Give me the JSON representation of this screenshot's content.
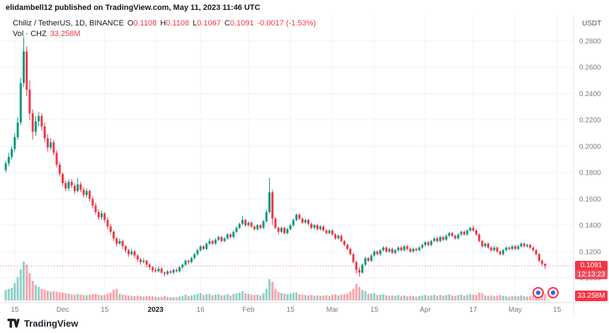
{
  "publish_bar": {
    "text": "elidambell12 published on TradingView.com, May 11, 2023 11:46 UTC"
  },
  "legend": {
    "symbol": "Chiliz / TetherUS, 1D, BINANCE",
    "o_label": "O",
    "o_value": "0.1108",
    "h_label": "H",
    "h_value": "0.1108",
    "l_label": "L",
    "l_value": "0.1067",
    "c_label": "C",
    "c_value": "0.1091",
    "change": "-0.0017 (-1.53%)",
    "vol_label": "Vol · CHZ",
    "vol_value": "33.258M"
  },
  "axis": {
    "currency": "USDT"
  },
  "footer": {
    "logo_text": "TradingView"
  },
  "colors": {
    "up": "#089981",
    "down": "#f23645",
    "vol_up": "rgba(8,153,129,0.45)",
    "vol_down": "rgba(242,54,69,0.45)",
    "grid": "#f0f3fa",
    "axis_text": "#787b86",
    "text": "#131722",
    "badge": "#f23645",
    "separator": "#e0e3eb"
  },
  "chart_data": {
    "type": "candlestick",
    "title": "Chiliz / TetherUS, 1D, BINANCE",
    "quote_currency": "USDT",
    "last_price": 0.1091,
    "countdown": "12:13:23",
    "last_volume": "33.258M",
    "price_axis": {
      "min": 0.1,
      "max": 0.28,
      "ticks": [
        0.28,
        0.26,
        0.24,
        0.22,
        0.2,
        0.18,
        0.16,
        0.14,
        0.12,
        0.1
      ]
    },
    "time_ticks": [
      {
        "label": "15",
        "slot": 3,
        "bold": false
      },
      {
        "label": "Dec",
        "slot": 19,
        "bold": false
      },
      {
        "label": "15",
        "slot": 33,
        "bold": false
      },
      {
        "label": "2023",
        "slot": 50,
        "bold": true
      },
      {
        "label": "16",
        "slot": 65,
        "bold": false
      },
      {
        "label": "Feb",
        "slot": 81,
        "bold": false
      },
      {
        "label": "15",
        "slot": 95,
        "bold": false
      },
      {
        "label": "Mar",
        "slot": 109,
        "bold": false
      },
      {
        "label": "15",
        "slot": 123,
        "bold": false
      },
      {
        "label": "Apr",
        "slot": 140,
        "bold": false
      },
      {
        "label": "17",
        "slot": 156,
        "bold": false
      },
      {
        "label": "May",
        "slot": 170,
        "bold": false
      },
      {
        "label": "15",
        "slot": 184,
        "bold": false
      }
    ],
    "slots": 190,
    "volume_scale_max": 200,
    "candles_format": [
      "open",
      "high",
      "low",
      "close",
      "volume_millions"
    ],
    "candles": [
      [
        0.182,
        0.189,
        0.18,
        0.187,
        55
      ],
      [
        0.187,
        0.195,
        0.185,
        0.192,
        60
      ],
      [
        0.192,
        0.2,
        0.19,
        0.198,
        65
      ],
      [
        0.198,
        0.21,
        0.196,
        0.207,
        90
      ],
      [
        0.207,
        0.222,
        0.205,
        0.218,
        120
      ],
      [
        0.218,
        0.252,
        0.216,
        0.248,
        160
      ],
      [
        0.248,
        0.283,
        0.245,
        0.272,
        200
      ],
      [
        0.272,
        0.276,
        0.238,
        0.243,
        185
      ],
      [
        0.243,
        0.25,
        0.22,
        0.225,
        140
      ],
      [
        0.225,
        0.228,
        0.205,
        0.211,
        100
      ],
      [
        0.211,
        0.223,
        0.208,
        0.219,
        80
      ],
      [
        0.219,
        0.226,
        0.215,
        0.223,
        70
      ],
      [
        0.223,
        0.225,
        0.212,
        0.215,
        60
      ],
      [
        0.215,
        0.218,
        0.203,
        0.206,
        55
      ],
      [
        0.206,
        0.209,
        0.196,
        0.199,
        50
      ],
      [
        0.199,
        0.206,
        0.197,
        0.203,
        45
      ],
      [
        0.203,
        0.205,
        0.193,
        0.195,
        48
      ],
      [
        0.195,
        0.197,
        0.184,
        0.186,
        45
      ],
      [
        0.186,
        0.188,
        0.177,
        0.179,
        42
      ],
      [
        0.179,
        0.18,
        0.17,
        0.172,
        40
      ],
      [
        0.172,
        0.174,
        0.166,
        0.168,
        38
      ],
      [
        0.168,
        0.175,
        0.166,
        0.173,
        35
      ],
      [
        0.173,
        0.175,
        0.168,
        0.17,
        32
      ],
      [
        0.17,
        0.172,
        0.164,
        0.166,
        30
      ],
      [
        0.166,
        0.176,
        0.165,
        0.171,
        34
      ],
      [
        0.171,
        0.173,
        0.165,
        0.167,
        30
      ],
      [
        0.167,
        0.169,
        0.161,
        0.163,
        28
      ],
      [
        0.163,
        0.168,
        0.161,
        0.166,
        27
      ],
      [
        0.166,
        0.167,
        0.158,
        0.16,
        30
      ],
      [
        0.16,
        0.162,
        0.153,
        0.155,
        32
      ],
      [
        0.155,
        0.157,
        0.148,
        0.15,
        34
      ],
      [
        0.15,
        0.152,
        0.144,
        0.146,
        30
      ],
      [
        0.146,
        0.151,
        0.144,
        0.149,
        26
      ],
      [
        0.149,
        0.15,
        0.142,
        0.144,
        28
      ],
      [
        0.144,
        0.146,
        0.137,
        0.139,
        35
      ],
      [
        0.139,
        0.141,
        0.133,
        0.135,
        40
      ],
      [
        0.135,
        0.136,
        0.128,
        0.13,
        55
      ],
      [
        0.13,
        0.131,
        0.124,
        0.126,
        60
      ],
      [
        0.126,
        0.13,
        0.125,
        0.128,
        35
      ],
      [
        0.128,
        0.129,
        0.122,
        0.124,
        30
      ],
      [
        0.124,
        0.125,
        0.119,
        0.121,
        28
      ],
      [
        0.121,
        0.122,
        0.116,
        0.118,
        26
      ],
      [
        0.118,
        0.122,
        0.117,
        0.12,
        24
      ],
      [
        0.12,
        0.121,
        0.115,
        0.117,
        22
      ],
      [
        0.117,
        0.118,
        0.112,
        0.114,
        25
      ],
      [
        0.114,
        0.115,
        0.11,
        0.112,
        23
      ],
      [
        0.112,
        0.115,
        0.111,
        0.113,
        20
      ],
      [
        0.113,
        0.114,
        0.108,
        0.11,
        24
      ],
      [
        0.11,
        0.111,
        0.106,
        0.108,
        22
      ],
      [
        0.108,
        0.109,
        0.104,
        0.106,
        21
      ],
      [
        0.106,
        0.108,
        0.104,
        0.105,
        20
      ],
      [
        0.105,
        0.1085,
        0.104,
        0.107,
        18
      ],
      [
        0.107,
        0.108,
        0.103,
        0.104,
        19
      ],
      [
        0.104,
        0.105,
        0.101,
        0.103,
        22
      ],
      [
        0.103,
        0.106,
        0.102,
        0.105,
        18
      ],
      [
        0.105,
        0.106,
        0.103,
        0.104,
        16
      ],
      [
        0.104,
        0.107,
        0.103,
        0.106,
        17
      ],
      [
        0.106,
        0.107,
        0.104,
        0.105,
        16
      ],
      [
        0.105,
        0.109,
        0.104,
        0.108,
        20
      ],
      [
        0.108,
        0.111,
        0.107,
        0.11,
        24
      ],
      [
        0.11,
        0.114,
        0.109,
        0.113,
        30
      ],
      [
        0.113,
        0.114,
        0.11,
        0.112,
        22
      ],
      [
        0.112,
        0.116,
        0.111,
        0.115,
        26
      ],
      [
        0.115,
        0.119,
        0.114,
        0.118,
        30
      ],
      [
        0.118,
        0.122,
        0.117,
        0.121,
        34
      ],
      [
        0.121,
        0.125,
        0.12,
        0.124,
        38
      ],
      [
        0.124,
        0.125,
        0.121,
        0.122,
        28
      ],
      [
        0.122,
        0.127,
        0.121,
        0.126,
        32
      ],
      [
        0.126,
        0.13,
        0.125,
        0.128,
        34
      ],
      [
        0.128,
        0.129,
        0.125,
        0.126,
        26
      ],
      [
        0.126,
        0.13,
        0.125,
        0.129,
        30
      ],
      [
        0.129,
        0.132,
        0.128,
        0.131,
        32
      ],
      [
        0.131,
        0.132,
        0.127,
        0.128,
        26
      ],
      [
        0.128,
        0.131,
        0.127,
        0.13,
        28
      ],
      [
        0.13,
        0.134,
        0.129,
        0.133,
        32
      ],
      [
        0.133,
        0.134,
        0.13,
        0.131,
        26
      ],
      [
        0.131,
        0.136,
        0.13,
        0.135,
        34
      ],
      [
        0.135,
        0.139,
        0.134,
        0.138,
        36
      ],
      [
        0.138,
        0.142,
        0.137,
        0.141,
        40
      ],
      [
        0.141,
        0.147,
        0.14,
        0.144,
        48
      ],
      [
        0.144,
        0.145,
        0.139,
        0.14,
        36
      ],
      [
        0.14,
        0.143,
        0.139,
        0.142,
        34
      ],
      [
        0.142,
        0.143,
        0.138,
        0.139,
        30
      ],
      [
        0.139,
        0.14,
        0.136,
        0.137,
        28
      ],
      [
        0.137,
        0.141,
        0.136,
        0.14,
        30
      ],
      [
        0.14,
        0.141,
        0.137,
        0.138,
        26
      ],
      [
        0.138,
        0.144,
        0.137,
        0.143,
        38
      ],
      [
        0.143,
        0.152,
        0.142,
        0.15,
        60
      ],
      [
        0.15,
        0.176,
        0.149,
        0.165,
        110
      ],
      [
        0.165,
        0.167,
        0.14,
        0.145,
        95
      ],
      [
        0.145,
        0.146,
        0.137,
        0.138,
        60
      ],
      [
        0.138,
        0.139,
        0.133,
        0.135,
        45
      ],
      [
        0.135,
        0.139,
        0.134,
        0.138,
        38
      ],
      [
        0.138,
        0.139,
        0.133,
        0.134,
        34
      ],
      [
        0.134,
        0.138,
        0.133,
        0.137,
        32
      ],
      [
        0.137,
        0.141,
        0.136,
        0.14,
        36
      ],
      [
        0.14,
        0.145,
        0.139,
        0.144,
        40
      ],
      [
        0.144,
        0.149,
        0.143,
        0.148,
        42
      ],
      [
        0.148,
        0.149,
        0.144,
        0.145,
        32
      ],
      [
        0.145,
        0.146,
        0.141,
        0.142,
        30
      ],
      [
        0.142,
        0.145,
        0.141,
        0.144,
        28
      ],
      [
        0.144,
        0.145,
        0.14,
        0.141,
        26
      ],
      [
        0.141,
        0.142,
        0.137,
        0.138,
        28
      ],
      [
        0.138,
        0.141,
        0.137,
        0.14,
        24
      ],
      [
        0.14,
        0.141,
        0.136,
        0.137,
        26
      ],
      [
        0.137,
        0.14,
        0.136,
        0.139,
        24
      ],
      [
        0.139,
        0.14,
        0.135,
        0.136,
        25
      ],
      [
        0.136,
        0.137,
        0.133,
        0.134,
        27
      ],
      [
        0.134,
        0.137,
        0.133,
        0.136,
        24
      ],
      [
        0.136,
        0.137,
        0.132,
        0.133,
        30
      ],
      [
        0.133,
        0.134,
        0.129,
        0.13,
        32
      ],
      [
        0.13,
        0.133,
        0.129,
        0.132,
        26
      ],
      [
        0.132,
        0.133,
        0.127,
        0.128,
        30
      ],
      [
        0.128,
        0.129,
        0.124,
        0.125,
        32
      ],
      [
        0.125,
        0.126,
        0.121,
        0.122,
        35
      ],
      [
        0.122,
        0.123,
        0.117,
        0.118,
        45
      ],
      [
        0.118,
        0.119,
        0.111,
        0.112,
        60
      ],
      [
        0.112,
        0.113,
        0.103,
        0.106,
        85
      ],
      [
        0.106,
        0.108,
        0.101,
        0.104,
        70
      ],
      [
        0.104,
        0.111,
        0.103,
        0.11,
        55
      ],
      [
        0.11,
        0.116,
        0.109,
        0.115,
        48
      ],
      [
        0.115,
        0.116,
        0.112,
        0.113,
        34
      ],
      [
        0.113,
        0.118,
        0.112,
        0.117,
        36
      ],
      [
        0.117,
        0.121,
        0.116,
        0.12,
        38
      ],
      [
        0.12,
        0.121,
        0.117,
        0.118,
        28
      ],
      [
        0.118,
        0.122,
        0.117,
        0.121,
        30
      ],
      [
        0.121,
        0.124,
        0.12,
        0.123,
        32
      ],
      [
        0.123,
        0.124,
        0.119,
        0.12,
        26
      ],
      [
        0.12,
        0.123,
        0.119,
        0.122,
        24
      ],
      [
        0.122,
        0.123,
        0.118,
        0.119,
        26
      ],
      [
        0.119,
        0.122,
        0.118,
        0.121,
        24
      ],
      [
        0.121,
        0.124,
        0.12,
        0.123,
        28
      ],
      [
        0.123,
        0.124,
        0.12,
        0.121,
        22
      ],
      [
        0.121,
        0.125,
        0.12,
        0.124,
        26
      ],
      [
        0.124,
        0.125,
        0.121,
        0.122,
        22
      ],
      [
        0.122,
        0.123,
        0.119,
        0.12,
        24
      ],
      [
        0.12,
        0.123,
        0.119,
        0.122,
        22
      ],
      [
        0.122,
        0.123,
        0.12,
        0.121,
        20
      ],
      [
        0.121,
        0.124,
        0.12,
        0.123,
        24
      ],
      [
        0.123,
        0.126,
        0.122,
        0.125,
        26
      ],
      [
        0.125,
        0.128,
        0.124,
        0.127,
        28
      ],
      [
        0.127,
        0.128,
        0.124,
        0.125,
        24
      ],
      [
        0.125,
        0.129,
        0.124,
        0.128,
        26
      ],
      [
        0.128,
        0.131,
        0.127,
        0.13,
        30
      ],
      [
        0.13,
        0.131,
        0.127,
        0.128,
        24
      ],
      [
        0.128,
        0.132,
        0.127,
        0.131,
        28
      ],
      [
        0.131,
        0.132,
        0.128,
        0.129,
        24
      ],
      [
        0.129,
        0.133,
        0.128,
        0.132,
        28
      ],
      [
        0.132,
        0.135,
        0.131,
        0.134,
        32
      ],
      [
        0.134,
        0.135,
        0.131,
        0.132,
        26
      ],
      [
        0.132,
        0.133,
        0.129,
        0.13,
        24
      ],
      [
        0.13,
        0.134,
        0.129,
        0.133,
        28
      ],
      [
        0.133,
        0.136,
        0.132,
        0.135,
        30
      ],
      [
        0.135,
        0.136,
        0.132,
        0.133,
        24
      ],
      [
        0.133,
        0.137,
        0.132,
        0.136,
        28
      ],
      [
        0.136,
        0.139,
        0.135,
        0.138,
        32
      ],
      [
        0.138,
        0.14,
        0.135,
        0.136,
        30
      ],
      [
        0.136,
        0.137,
        0.132,
        0.133,
        28
      ],
      [
        0.133,
        0.134,
        0.127,
        0.128,
        40
      ],
      [
        0.128,
        0.129,
        0.123,
        0.124,
        36
      ],
      [
        0.124,
        0.127,
        0.123,
        0.126,
        26
      ],
      [
        0.126,
        0.127,
        0.122,
        0.123,
        24
      ],
      [
        0.123,
        0.124,
        0.12,
        0.121,
        26
      ],
      [
        0.121,
        0.124,
        0.12,
        0.123,
        22
      ],
      [
        0.123,
        0.124,
        0.119,
        0.12,
        24
      ],
      [
        0.12,
        0.121,
        0.117,
        0.118,
        28
      ],
      [
        0.118,
        0.122,
        0.117,
        0.121,
        24
      ],
      [
        0.121,
        0.124,
        0.12,
        0.123,
        22
      ],
      [
        0.123,
        0.124,
        0.121,
        0.122,
        20
      ],
      [
        0.122,
        0.125,
        0.121,
        0.124,
        22
      ],
      [
        0.124,
        0.125,
        0.121,
        0.122,
        24
      ],
      [
        0.122,
        0.125,
        0.121,
        0.124,
        22
      ],
      [
        0.124,
        0.127,
        0.123,
        0.126,
        26
      ],
      [
        0.126,
        0.127,
        0.123,
        0.124,
        22
      ],
      [
        0.124,
        0.126,
        0.123,
        0.125,
        20
      ],
      [
        0.125,
        0.126,
        0.122,
        0.123,
        22
      ],
      [
        0.123,
        0.124,
        0.12,
        0.121,
        24
      ],
      [
        0.121,
        0.122,
        0.117,
        0.118,
        30
      ],
      [
        0.118,
        0.119,
        0.112,
        0.113,
        45
      ],
      [
        0.113,
        0.114,
        0.109,
        0.1108,
        55
      ],
      [
        0.1108,
        0.1108,
        0.1067,
        0.1091,
        33.258
      ]
    ]
  }
}
